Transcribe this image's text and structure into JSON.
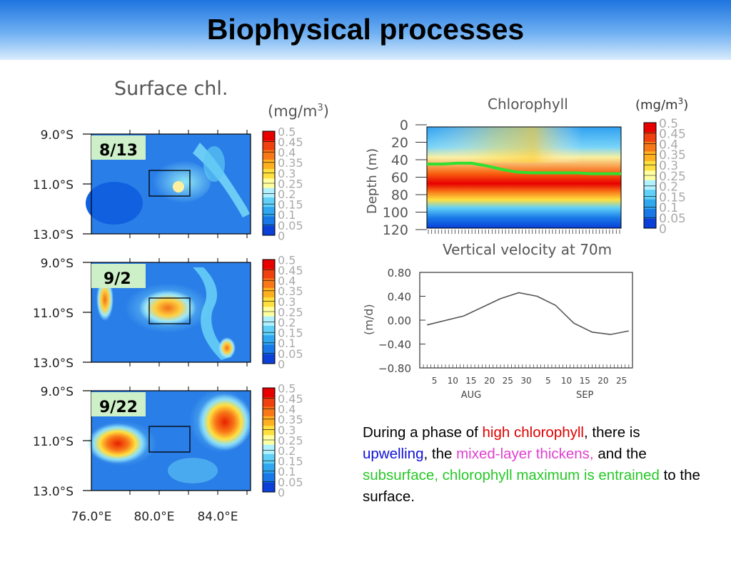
{
  "slide": {
    "title": "Biophysical processes",
    "caption": {
      "t1": "During a phase of ",
      "t2": "high chlorophyll",
      "t3": ", there is ",
      "t4": "upwelling",
      "t5": ", the ",
      "t6": "mixed-layer thickens",
      "t7": ",",
      "t8": " and the ",
      "t9": "subsurface, chlorophyll maximum is entrained",
      "t10": " to the surface."
    },
    "colors": {
      "high_chlorophyll": "#e00000",
      "upwelling": "#1010d8",
      "mixed_layer": "#e040d0",
      "entrained": "#28c828"
    }
  },
  "chart_data": [
    {
      "type": "heatmap",
      "title": "Surface chl.",
      "unit_label": "(mg/m",
      "unit_sup": "3",
      "unit_close": ")",
      "panels": [
        {
          "label": "8/13",
          "description_field": "low chlorophyll, mostly blue with a cyan filament"
        },
        {
          "label": "9/2",
          "description_field": "moderate chlorophyll patch inside box"
        },
        {
          "label": "9/22",
          "description_field": "high chlorophyll patches west and east of box"
        }
      ],
      "y_ticks": [
        "9.0°S",
        "11.0°S",
        "13.0°S"
      ],
      "x_ticks": [
        "76.0°E",
        "80.0°E",
        "84.0°E"
      ],
      "colorbar_ticks": [
        "0.5",
        "0.45",
        "0.4",
        "0.35",
        "0.3",
        "0.25",
        "0.2",
        "0.15",
        "0.1",
        "0.05",
        "0"
      ],
      "colorbar_colors": [
        "#e80000",
        "#f04010",
        "#f87818",
        "#ffb020",
        "#ffe040",
        "#ffffa0",
        "#b0f0ff",
        "#60d0f8",
        "#30a8f0",
        "#1878e8",
        "#0a40d8"
      ]
    },
    {
      "type": "heatmap",
      "title": "Chlorophyll",
      "unit_label": "(mg/m",
      "unit_sup": "3",
      "unit_close": ")",
      "ylabel": "Depth (m)",
      "y_ticks": [
        "0",
        "20",
        "40",
        "60",
        "80",
        "100",
        "120"
      ],
      "ylim": [
        0,
        120
      ],
      "colorbar_ticks": [
        "0.5",
        "0.45",
        "0.4",
        "0.35",
        "0.3",
        "0.25",
        "0.2",
        "0.15",
        "0.1",
        "0.05",
        "0"
      ],
      "mixed_layer_depth_m": [
        45,
        45,
        44,
        44,
        47,
        51,
        54,
        55,
        55,
        55,
        55,
        56,
        56,
        56
      ]
    },
    {
      "type": "line",
      "title": "Vertical velocity at 70m",
      "ylabel": "(m/d)",
      "ylim": [
        -0.8,
        0.8
      ],
      "y_ticks": [
        "0.80",
        "0.40",
        "0.00",
        "−0.40",
        "−0.80"
      ],
      "x_ticks": [
        "5",
        "10",
        "15",
        "20",
        "25",
        "30",
        "5",
        "10",
        "15",
        "20",
        "25"
      ],
      "x_months": [
        "AUG",
        "SEP"
      ],
      "series": [
        {
          "x": [
            "Aug 3",
            "Aug 13",
            "Aug 23",
            "Aug 28",
            "Sep 2",
            "Sep 7",
            "Sep 12",
            "Sep 17",
            "Sep 22",
            "Sep 27"
          ],
          "values": [
            -0.08,
            0.07,
            0.36,
            0.46,
            0.4,
            0.25,
            -0.05,
            -0.2,
            -0.24,
            -0.18
          ]
        }
      ]
    }
  ]
}
